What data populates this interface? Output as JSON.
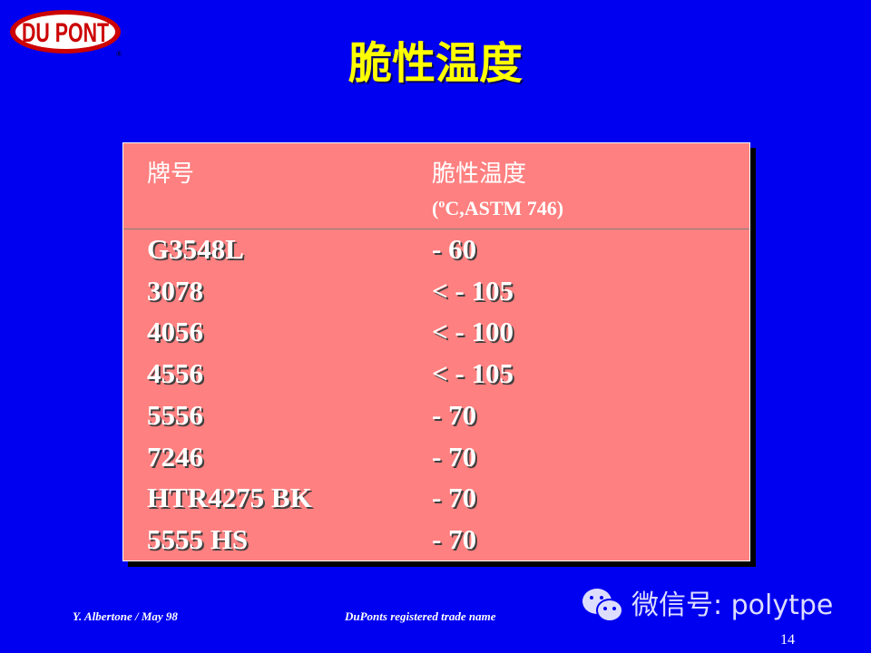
{
  "logo": {
    "text": "DU PONT",
    "mark": "®"
  },
  "title": "脆性温度",
  "table": {
    "headers": [
      "牌号",
      "脆性温度"
    ],
    "unit_prefix": "(",
    "unit_degree": "o",
    "unit_rest": "C,ASTM 746)",
    "rows": [
      [
        "G3548L",
        "- 60"
      ],
      [
        "3078",
        "< - 105"
      ],
      [
        "4056",
        "< - 100"
      ],
      [
        "4556",
        "< - 105"
      ],
      [
        "5556",
        "- 70"
      ],
      [
        "7246",
        "- 70"
      ],
      [
        "HTR4275 BK",
        "- 70"
      ],
      [
        "5555 HS",
        "- 70"
      ]
    ]
  },
  "footer": {
    "author": "Y. Albertone / May 98",
    "note": "DuPonts registered trade name",
    "page": "14"
  },
  "watermark": {
    "text": "微信号: polytpe",
    "icon": "wechat-icon"
  },
  "colors": {
    "background": "#0000f0",
    "title": "#ffff00",
    "table": "#ff8080",
    "logo_red": "#cc0000"
  }
}
